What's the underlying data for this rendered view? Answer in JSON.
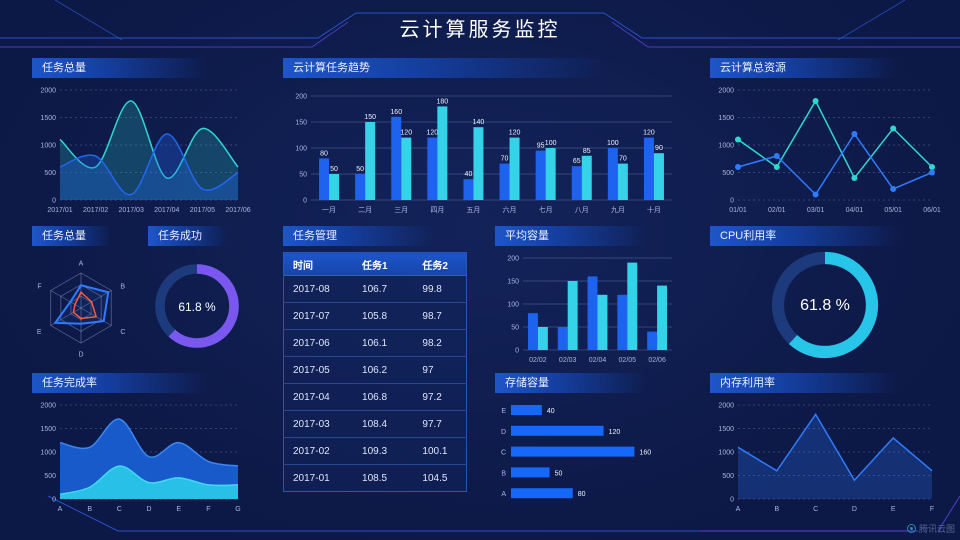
{
  "header": {
    "title": "云计算服务监控"
  },
  "footer": {
    "logo": "腾讯云图"
  },
  "colors": {
    "blue": "#1e63f0",
    "cyan": "#35d3e8",
    "teal": "#2fd8cf",
    "purple": "#7a58f0",
    "orange": "#ff5a3c",
    "bar_blue": "#1668fa",
    "axis_text": "#a9b6e0",
    "grid": "rgba(150,170,225,0.28)"
  },
  "panels": {
    "task_total_trend": {
      "title": "任务总量"
    },
    "cloud_task_trend": {
      "title": "云计算任务趋势"
    },
    "cloud_resources": {
      "title": "云计算总资源"
    },
    "task_radar": {
      "title": "任务总量"
    },
    "task_success": {
      "title": "任务成功"
    },
    "task_management": {
      "title": "任务管理"
    },
    "avg_capacity": {
      "title": "平均容量"
    },
    "cpu_usage": {
      "title": "CPU利用率"
    },
    "task_completion": {
      "title": "任务完成率"
    },
    "storage_capacity": {
      "title": "存储容量"
    },
    "memory_usage": {
      "title": "内存利用率"
    }
  },
  "chart_data": [
    {
      "type": "area",
      "title": "任务总量",
      "smooth": true,
      "dashed_grid": true,
      "categories": [
        "2017/01",
        "2017/02",
        "2017/03",
        "2017/04",
        "2017/05",
        "2017/06"
      ],
      "yticks": [
        0,
        500,
        1000,
        1500,
        2000
      ],
      "ylim": [
        0,
        2000
      ],
      "series": [
        {
          "name": "cyan-series",
          "color": "#2fd8cf",
          "width": 1.5,
          "fill_opacity": 0.22,
          "values": [
            1100,
            600,
            1800,
            400,
            1300,
            600
          ]
        },
        {
          "name": "blue-series",
          "color": "#2166f0",
          "width": 1.5,
          "fill_opacity": 0.3,
          "values": [
            600,
            800,
            100,
            1200,
            200,
            500
          ]
        }
      ]
    },
    {
      "type": "bar",
      "title": "云计算任务趋势",
      "bar_labels": true,
      "categories": [
        "一月",
        "二月",
        "三月",
        "四月",
        "五月",
        "六月",
        "七月",
        "八月",
        "九月",
        "十月"
      ],
      "yticks": [
        0,
        50,
        100,
        150,
        200
      ],
      "ylim": [
        0,
        200
      ],
      "series": [
        {
          "name": "blue-series",
          "color": "#1e63f0",
          "values": [
            80,
            50,
            160,
            120,
            40,
            70,
            95,
            65,
            100,
            120
          ]
        },
        {
          "name": "cyan-series",
          "color": "#35d3e8",
          "values": [
            50,
            150,
            120,
            180,
            140,
            120,
            100,
            85,
            70,
            90
          ]
        }
      ]
    },
    {
      "type": "line",
      "title": "云计算总资源",
      "dashed_grid": true,
      "categories": [
        "01/01",
        "02/01",
        "03/01",
        "04/01",
        "05/01",
        "06/01"
      ],
      "yticks": [
        0,
        500,
        1000,
        1500,
        2000
      ],
      "ylim": [
        0,
        2000
      ],
      "series": [
        {
          "name": "teal-series",
          "color": "#2fd8cf",
          "width": 1.5,
          "markers": true,
          "values": [
            1100,
            600,
            1800,
            400,
            1300,
            600
          ]
        },
        {
          "name": "blue-series",
          "color": "#2f7bff",
          "width": 1.5,
          "markers": true,
          "values": [
            600,
            800,
            100,
            1200,
            200,
            500
          ]
        }
      ]
    },
    {
      "type": "radar",
      "title": "任务总量",
      "indicators": [
        "A",
        "B",
        "C",
        "D",
        "E",
        "F"
      ],
      "max": 100,
      "series": [
        {
          "name": "blue-series",
          "color": "#2f7bff",
          "width": 2,
          "fill_opacity": 0.08,
          "values": [
            65,
            90,
            75,
            45,
            85,
            35
          ]
        },
        {
          "name": "orange-series",
          "color": "#ff5a3c",
          "width": 1.5,
          "fill_opacity": 0,
          "values": [
            45,
            35,
            50,
            30,
            25,
            20
          ]
        }
      ]
    },
    {
      "type": "donut",
      "title": "任务成功",
      "percent": 61.8,
      "label": "61.8 %",
      "color": "#7a58f0",
      "track": "#1d3a7c"
    },
    {
      "type": "table",
      "title": "任务管理",
      "columns": [
        "时间",
        "任务1",
        "任务2"
      ],
      "rows": [
        [
          "2017-08",
          "106.7",
          "99.8"
        ],
        [
          "2017-07",
          "105.8",
          "98.7"
        ],
        [
          "2017-06",
          "106.1",
          "98.2"
        ],
        [
          "2017-05",
          "106.2",
          "97"
        ],
        [
          "2017-04",
          "106.8",
          "97.2"
        ],
        [
          "2017-03",
          "108.4",
          "97.7"
        ],
        [
          "2017-02",
          "109.3",
          "100.1"
        ],
        [
          "2017-01",
          "108.5",
          "104.5"
        ]
      ]
    },
    {
      "type": "bar",
      "title": "平均容量",
      "bar_labels": false,
      "categories": [
        "02/02",
        "02/03",
        "02/04",
        "02/05",
        "02/06"
      ],
      "yticks": [
        0,
        50,
        100,
        150,
        200
      ],
      "ylim": [
        0,
        200
      ],
      "series": [
        {
          "name": "blue-series",
          "color": "#1e63f0",
          "values": [
            80,
            50,
            160,
            120,
            40
          ]
        },
        {
          "name": "cyan-series",
          "color": "#35d3e8",
          "values": [
            50,
            150,
            120,
            190,
            140
          ]
        }
      ]
    },
    {
      "type": "donut",
      "title": "CPU利用率",
      "percent": 61.8,
      "label": "61.8 %",
      "color": "#27c5e8",
      "track": "#1d3a7c"
    },
    {
      "type": "area",
      "title": "任务完成率",
      "smooth": true,
      "dashed_grid": true,
      "categories": [
        "A",
        "B",
        "C",
        "D",
        "E",
        "F",
        "G"
      ],
      "yticks": [
        0,
        500,
        1000,
        1500,
        2000
      ],
      "ylim": [
        0,
        2000
      ],
      "series": [
        {
          "name": "blue-series",
          "color": "#1b62d8",
          "stroke": "#3b86f0",
          "width": 1.5,
          "fill_opacity": 0.9,
          "values": [
            1200,
            1100,
            1700,
            900,
            1200,
            800,
            700
          ]
        },
        {
          "name": "cyan-series",
          "color": "#29c6e8",
          "stroke": "#45d8f2",
          "width": 1.5,
          "fill_opacity": 0.95,
          "values": [
            100,
            250,
            700,
            350,
            450,
            300,
            300
          ]
        }
      ]
    },
    {
      "type": "hbar",
      "title": "存储容量",
      "color": "#1668fa",
      "xmax": 175,
      "categories": [
        "E",
        "D",
        "C",
        "B",
        "A"
      ],
      "values": [
        40,
        120,
        160,
        50,
        80
      ]
    },
    {
      "type": "line",
      "title": "内存利用率",
      "dashed_grid": true,
      "categories": [
        "A",
        "B",
        "C",
        "D",
        "E",
        "F"
      ],
      "yticks": [
        0,
        500,
        1000,
        1500,
        2000
      ],
      "ylim": [
        0,
        2000
      ],
      "series": [
        {
          "name": "blue-series",
          "color": "#2f7bff",
          "width": 1.5,
          "fill_opacity": 0.25,
          "values": [
            1100,
            600,
            1800,
            400,
            1300,
            600
          ]
        }
      ]
    }
  ]
}
